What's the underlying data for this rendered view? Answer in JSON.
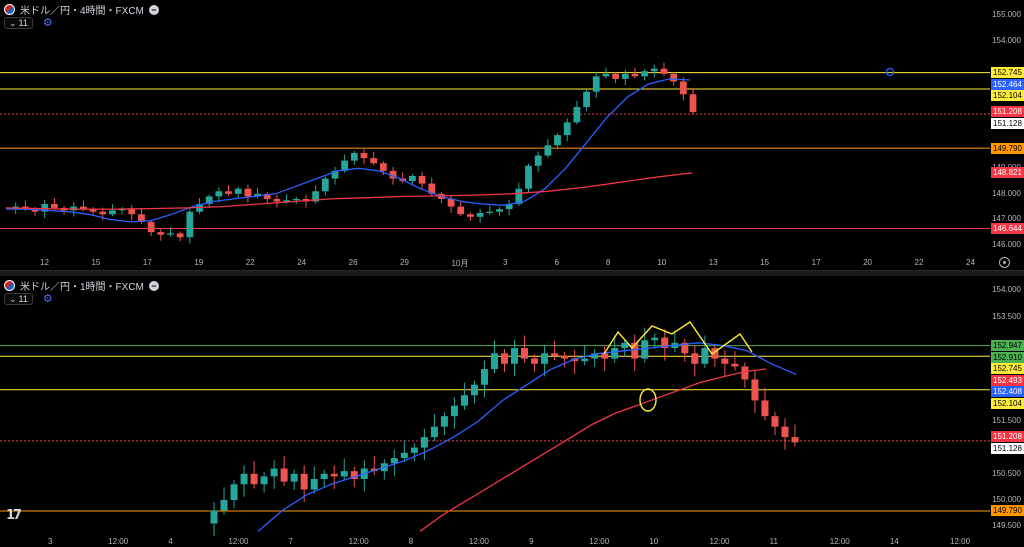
{
  "top_pane": {
    "symbol_title": "米ドル／円・4時間・FXCM",
    "indicator_count": "11",
    "price_ticks": [
      "155.000",
      "154.000",
      "149.000",
      "148.000",
      "147.000",
      "146.000"
    ],
    "price_labels": [
      {
        "text": "152.745",
        "color": "#ffeb3b",
        "y": 152.745
      },
      {
        "text": "152.464",
        "color": "#2962ff",
        "y": 152.464
      },
      {
        "text": "152.104",
        "color": "#ffeb3b",
        "y": 152.104
      },
      {
        "text": "151.208",
        "color": "#f23645",
        "y": 151.208
      },
      {
        "text": "151.128",
        "color": "#ffffff",
        "y": 151.128
      },
      {
        "text": "149.790",
        "color": "#ff9800",
        "y": 149.79
      },
      {
        "text": "148.821",
        "color": "#f23645",
        "y": 148.821
      },
      {
        "text": "146.644",
        "color": "#f23645",
        "y": 146.644
      }
    ],
    "time_labels": [
      "12",
      "15",
      "17",
      "19",
      "22",
      "24",
      "26",
      "29",
      "10月",
      "3",
      "6",
      "8",
      "10",
      "13",
      "15",
      "17",
      "20",
      "22",
      "24"
    ],
    "hlines": [
      {
        "y": 152.745,
        "color": "#ffeb3b",
        "style": "solid"
      },
      {
        "y": 152.104,
        "color": "#ffeb3b",
        "style": "solid"
      },
      {
        "y": 151.128,
        "color": "#f23645",
        "style": "dotted"
      },
      {
        "y": 149.79,
        "color": "#ff9800",
        "style": "solid"
      },
      {
        "y": 146.644,
        "color": "#f23645",
        "style": "solid"
      }
    ]
  },
  "bottom_pane": {
    "symbol_title": "米ドル／円・1時間・FXCM",
    "indicator_count": "11",
    "price_ticks": [
      "154.000",
      "153.500",
      "151.500",
      "150.500",
      "150.000",
      "149.500"
    ],
    "price_labels": [
      {
        "text": "152.947",
        "color": "#4caf50",
        "y": 152.947
      },
      {
        "text": "152.910",
        "color": "#4caf50",
        "y": 152.91
      },
      {
        "text": "152.745",
        "color": "#ffeb3b",
        "y": 152.745
      },
      {
        "text": "152.493",
        "color": "#f23645",
        "y": 152.493
      },
      {
        "text": "152.408",
        "color": "#2962ff",
        "y": 152.408
      },
      {
        "text": "152.104",
        "color": "#ffeb3b",
        "y": 152.104
      },
      {
        "text": "151.208",
        "color": "#f23645",
        "y": 151.208
      },
      {
        "text": "151.128",
        "color": "#ffffff",
        "y": 151.128
      },
      {
        "text": "149.790",
        "color": "#ff9800",
        "y": 149.79
      }
    ],
    "time_labels": [
      "3",
      "12:00",
      "4",
      "12:00",
      "7",
      "12:00",
      "8",
      "12:00",
      "9",
      "12:00",
      "10",
      "12:00",
      "11",
      "12:00",
      "14",
      "12:00"
    ],
    "hlines": [
      {
        "y": 152.947,
        "color": "#4caf50",
        "style": "solid"
      },
      {
        "y": 152.745,
        "color": "#ffeb3b",
        "style": "solid"
      },
      {
        "y": 152.104,
        "color": "#ffeb3b",
        "style": "solid"
      },
      {
        "y": 151.128,
        "color": "#f23645",
        "style": "dotted"
      },
      {
        "y": 149.79,
        "color": "#ff9800",
        "style": "solid"
      }
    ]
  },
  "colors": {
    "up": "#26a69a",
    "down": "#ef5350",
    "ma_fast": "#2962ff",
    "ma_slow": "#f23645",
    "drawing": "#ffeb3b"
  },
  "chart_data": [
    {
      "type": "candlestick",
      "title": "米ドル／円・4時間・FXCM",
      "ylim": [
        145.8,
        155.2
      ],
      "close_path": [
        147.45,
        147.5,
        147.4,
        147.3,
        147.6,
        147.45,
        147.35,
        147.5,
        147.4,
        147.3,
        147.2,
        147.35,
        147.4,
        147.2,
        146.9,
        146.5,
        146.4,
        146.45,
        146.3,
        147.3,
        147.6,
        147.9,
        148.1,
        148.0,
        148.2,
        147.9,
        148.0,
        147.8,
        147.7,
        147.75,
        147.8,
        147.7,
        148.1,
        148.6,
        148.9,
        149.3,
        149.6,
        149.4,
        149.2,
        148.9,
        148.6,
        148.5,
        148.7,
        148.4,
        148.0,
        147.8,
        147.5,
        147.2,
        147.1,
        147.25,
        147.3,
        147.4,
        147.6,
        148.2,
        149.1,
        149.5,
        149.9,
        150.3,
        150.8,
        151.4,
        152.0,
        152.6,
        152.7,
        152.5,
        152.7,
        152.6,
        152.8,
        152.9,
        152.7,
        152.4,
        151.9,
        151.2
      ],
      "ma_fast_path": [
        147.4,
        147.4,
        147.35,
        147.3,
        147.2,
        147.0,
        146.9,
        146.95,
        147.2,
        147.5,
        147.7,
        147.8,
        147.9,
        148.0,
        148.3,
        148.6,
        148.9,
        149.0,
        148.9,
        148.6,
        148.2,
        147.9,
        147.7,
        147.6,
        147.55,
        147.7,
        148.2,
        149.0,
        150.0,
        151.0,
        151.8,
        152.3,
        152.5,
        152.46
      ],
      "ma_slow_path": [
        147.45,
        147.42,
        147.4,
        147.4,
        147.42,
        147.45,
        147.5,
        147.6,
        147.7,
        147.8,
        147.85,
        147.9,
        147.92,
        147.95,
        148.0,
        148.1,
        148.25,
        148.45,
        148.65,
        148.82
      ]
    },
    {
      "type": "candlestick",
      "title": "米ドル／円・1時間・FXCM",
      "ylim": [
        149.35,
        154.2
      ],
      "close_path": [
        149.55,
        149.8,
        150.0,
        150.3,
        150.5,
        150.3,
        150.45,
        150.6,
        150.35,
        150.5,
        150.2,
        150.4,
        150.5,
        150.45,
        150.55,
        150.4,
        150.6,
        150.55,
        150.7,
        150.8,
        150.9,
        151.0,
        151.2,
        151.4,
        151.6,
        151.8,
        152.0,
        152.2,
        152.5,
        152.8,
        152.6,
        152.9,
        152.7,
        152.6,
        152.8,
        152.75,
        152.7,
        152.65,
        152.7,
        152.8,
        152.7,
        152.9,
        153.0,
        152.7,
        153.05,
        153.1,
        152.9,
        153.0,
        152.8,
        152.6,
        152.9,
        152.7,
        152.6,
        152.55,
        152.3,
        151.9,
        151.6,
        151.4,
        151.2,
        151.1
      ],
      "ma_fast_path": [
        149.4,
        149.8,
        150.1,
        150.3,
        150.45,
        150.6,
        150.75,
        150.95,
        151.2,
        151.5,
        151.9,
        152.2,
        152.5,
        152.7,
        152.8,
        152.85,
        152.9,
        152.95,
        153.0,
        152.95,
        152.85,
        152.6,
        152.4
      ],
      "ma_slow_path": [
        149.4,
        149.7,
        149.95,
        150.2,
        150.45,
        150.7,
        150.95,
        151.2,
        151.45,
        151.65,
        151.8,
        151.95,
        152.1,
        152.25,
        152.35,
        152.45,
        152.5
      ]
    }
  ]
}
